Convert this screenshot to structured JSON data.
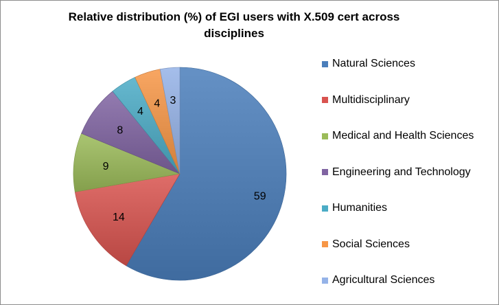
{
  "chart_data": {
    "type": "pie",
    "title": "Relative distribution (%) of EGI users with X.509 cert across disciplines",
    "legend_position": "right",
    "slices": [
      {
        "label": "Natural Sciences",
        "value": 59,
        "color": "#4a7ebb"
      },
      {
        "label": "Multidisciplinary",
        "value": 14,
        "color": "#d9534f"
      },
      {
        "label": "Medical and Health Sciences",
        "value": 9,
        "color": "#9bbb59"
      },
      {
        "label": "Engineering and Technology",
        "value": 8,
        "color": "#8064a2"
      },
      {
        "label": "Humanities",
        "value": 4,
        "color": "#4bacc6"
      },
      {
        "label": "Social Sciences",
        "value": 4,
        "color": "#f79646"
      },
      {
        "label": "Agricultural Sciences",
        "value": 3,
        "color": "#95b3e8"
      }
    ]
  }
}
